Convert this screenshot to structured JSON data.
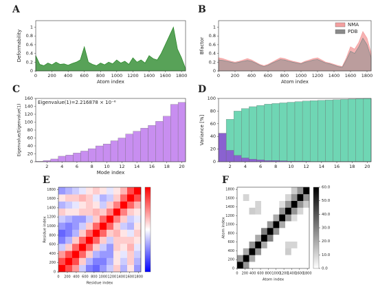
{
  "chart_data": [
    {
      "type": "line",
      "label": "A",
      "xlabel": "Atom index",
      "ylabel": "Deformability",
      "x": [
        0,
        50,
        100,
        150,
        200,
        250,
        300,
        350,
        400,
        450,
        500,
        550,
        600,
        650,
        700,
        750,
        800,
        850,
        900,
        950,
        1000,
        1050,
        1100,
        1150,
        1200,
        1250,
        1300,
        1350,
        1400,
        1450,
        1500,
        1550,
        1600,
        1650,
        1700,
        1750,
        1800,
        1850
      ],
      "series": [
        {
          "color": "#2e8b2e",
          "values": [
            0.35,
            0.15,
            0.12,
            0.18,
            0.14,
            0.2,
            0.15,
            0.16,
            0.13,
            0.17,
            0.2,
            0.25,
            0.55,
            0.2,
            0.15,
            0.12,
            0.18,
            0.14,
            0.2,
            0.16,
            0.25,
            0.18,
            0.22,
            0.15,
            0.3,
            0.2,
            0.25,
            0.18,
            0.35,
            0.28,
            0.25,
            0.4,
            0.6,
            0.8,
            1.0,
            0.5,
            0.3,
            0.05
          ]
        }
      ],
      "xlim": [
        0,
        1850
      ],
      "ylim": [
        0,
        1.15
      ],
      "xticks": [
        0,
        200,
        400,
        600,
        800,
        1000,
        1200,
        1400,
        1600,
        1800
      ],
      "yticks": [
        0,
        0.2,
        0.4,
        0.6,
        0.8,
        1
      ]
    },
    {
      "type": "line",
      "label": "B",
      "xlabel": "Atom index",
      "ylabel": "Bfactor",
      "x": [
        0,
        50,
        100,
        150,
        200,
        250,
        300,
        350,
        400,
        450,
        500,
        550,
        600,
        650,
        700,
        750,
        800,
        850,
        900,
        950,
        1000,
        1050,
        1100,
        1150,
        1200,
        1250,
        1300,
        1350,
        1400,
        1450,
        1500,
        1550,
        1600,
        1650,
        1700,
        1750,
        1800,
        1850
      ],
      "series": [
        {
          "name": "NMA",
          "color": "#f4a0a0",
          "values": [
            0.3,
            0.28,
            0.25,
            0.22,
            0.2,
            0.22,
            0.25,
            0.28,
            0.25,
            0.2,
            0.15,
            0.12,
            0.15,
            0.2,
            0.25,
            0.3,
            0.28,
            0.25,
            0.22,
            0.2,
            0.18,
            0.22,
            0.25,
            0.28,
            0.3,
            0.25,
            0.2,
            0.18,
            0.15,
            0.12,
            0.1,
            0.3,
            0.55,
            0.5,
            0.65,
            0.9,
            0.75,
            0.4
          ]
        },
        {
          "name": "PDB",
          "color": "#8a8a8a",
          "values": [
            0.25,
            0.24,
            0.22,
            0.2,
            0.18,
            0.2,
            0.22,
            0.24,
            0.22,
            0.18,
            0.13,
            0.1,
            0.13,
            0.18,
            0.22,
            0.26,
            0.25,
            0.22,
            0.2,
            0.18,
            0.16,
            0.2,
            0.22,
            0.25,
            0.26,
            0.22,
            0.18,
            0.16,
            0.13,
            0.1,
            0.08,
            0.25,
            0.45,
            0.4,
            0.55,
            0.75,
            0.6,
            0.3
          ]
        }
      ],
      "legend": "upper right",
      "xlim": [
        0,
        1850
      ],
      "ylim": [
        0,
        1.15
      ],
      "xticks": [
        0,
        200,
        400,
        600,
        800,
        1000,
        1200,
        1400,
        1600,
        1800
      ],
      "yticks": [
        0,
        0.2,
        0.4,
        0.6,
        0.8,
        1
      ]
    },
    {
      "type": "bar",
      "label": "C",
      "xlabel": "Mode index",
      "ylabel": "Eigenvalue/Eigenvalue(1)",
      "annotation": "Eigenvalue(1)=2.216878 × 10⁻⁶",
      "x": [
        1,
        2,
        3,
        4,
        5,
        6,
        7,
        8,
        9,
        10,
        11,
        12,
        13,
        14,
        15,
        16,
        17,
        18,
        19,
        20
      ],
      "series": [
        {
          "color": "#c88ef0",
          "values": [
            1,
            3,
            7,
            14,
            17,
            22,
            27,
            33,
            40,
            45,
            53,
            60,
            70,
            77,
            85,
            92,
            102,
            115,
            145,
            150
          ]
        }
      ],
      "xlim": [
        0.5,
        20.5
      ],
      "ylim": [
        0,
        160
      ],
      "xticks": [
        2,
        4,
        6,
        8,
        10,
        12,
        14,
        16,
        18,
        20
      ],
      "yticks": [
        0,
        20,
        40,
        60,
        80,
        100,
        120,
        140,
        160
      ]
    },
    {
      "type": "bar",
      "label": "D",
      "ylabel": "Variance [%]",
      "x": [
        1,
        2,
        3,
        4,
        5,
        6,
        7,
        8,
        9,
        10,
        11,
        12,
        13,
        14,
        15,
        16,
        17,
        18,
        19,
        20
      ],
      "series": [
        {
          "color": "#6fd6b4",
          "values": [
            45,
            67,
            80,
            84,
            87,
            89,
            91,
            92,
            93,
            94,
            95,
            96,
            96.5,
            97,
            97.5,
            98,
            98.5,
            99,
            99.5,
            100
          ]
        },
        {
          "color": "#8a62d0",
          "values": [
            45,
            18,
            10,
            6,
            4,
            3,
            2,
            2,
            1.5,
            1,
            1,
            1,
            0.5,
            0.5,
            0.5,
            0.5,
            0.5,
            0.5,
            0.5,
            0.5
          ]
        }
      ],
      "xlim": [
        0.5,
        20.5
      ],
      "ylim": [
        0,
        100
      ],
      "xticks": [
        2,
        4,
        6,
        8,
        10,
        12,
        14,
        16,
        18,
        20
      ],
      "yticks": [
        0,
        20,
        40,
        60,
        80,
        100
      ]
    },
    {
      "type": "heatmap",
      "label": "E",
      "xlabel": "Residue index",
      "ylabel": "Residue index",
      "colors": [
        "#0000ff",
        "#ffffff",
        "#ff0000"
      ],
      "zlim": [
        -1,
        1
      ],
      "matrix": [
        [
          1,
          0.7,
          0.4,
          -0.2,
          -0.5,
          -0.6,
          -0.4,
          -0.2,
          0.2,
          -0.3,
          0.1,
          -0.4
        ],
        [
          0.7,
          1,
          0.7,
          0.2,
          -0.3,
          -0.5,
          -0.5,
          -0.3,
          0.1,
          -0.2,
          0.2,
          -0.3
        ],
        [
          0.4,
          0.7,
          1,
          0.6,
          0.2,
          -0.3,
          -0.4,
          -0.4,
          0.1,
          -0.1,
          0.2,
          -0.2
        ],
        [
          -0.2,
          0.2,
          0.6,
          1,
          0.6,
          0.2,
          -0.2,
          -0.4,
          0.2,
          0.1,
          0.3,
          -0.1
        ],
        [
          -0.5,
          -0.3,
          0.2,
          0.6,
          1,
          0.6,
          0.2,
          -0.2,
          0.2,
          0.2,
          0.2,
          0.1
        ],
        [
          -0.6,
          -0.5,
          -0.3,
          0.2,
          0.6,
          1,
          0.6,
          0.2,
          0.3,
          0.1,
          -0.1,
          0.2
        ],
        [
          -0.4,
          -0.5,
          -0.4,
          -0.2,
          0.2,
          0.6,
          1,
          0.6,
          0.2,
          -0.2,
          -0.3,
          0.1
        ],
        [
          -0.2,
          -0.3,
          -0.4,
          -0.4,
          -0.2,
          0.2,
          0.6,
          1,
          0.5,
          0.2,
          -0.2,
          -0.1
        ],
        [
          0.2,
          0.1,
          0.1,
          0.2,
          0.2,
          0.3,
          0.2,
          0.5,
          1,
          0.5,
          0.2,
          0.1
        ],
        [
          -0.3,
          -0.2,
          -0.1,
          0.1,
          0.2,
          0.1,
          -0.2,
          0.2,
          0.5,
          1,
          0.6,
          0.3
        ],
        [
          0.1,
          0.2,
          0.2,
          0.3,
          0.2,
          -0.1,
          -0.3,
          -0.2,
          0.2,
          0.6,
          1,
          0.7
        ],
        [
          -0.4,
          -0.3,
          -0.2,
          -0.1,
          0.1,
          0.2,
          0.1,
          -0.1,
          0.1,
          0.3,
          0.7,
          1
        ]
      ],
      "xlim": [
        0,
        1850
      ],
      "ylim": [
        0,
        1850
      ],
      "xticks": [
        0,
        200,
        400,
        600,
        800,
        1000,
        1200,
        1400,
        1600,
        1800
      ],
      "yticks": [
        0,
        200,
        400,
        600,
        800,
        1000,
        1200,
        1400,
        1600,
        1800
      ]
    },
    {
      "type": "heatmap",
      "label": "F",
      "xlabel": "Atom index",
      "ylabel": "Atom index",
      "colors": [
        "#ffffff",
        "#000000"
      ],
      "zlim": [
        0,
        60
      ],
      "zticks": [
        {
          "value": 0,
          "label": "0.0"
        },
        {
          "value": 10,
          "label": "10.0"
        },
        {
          "value": 20,
          "label": "20.0"
        },
        {
          "value": 30,
          "label": "30.0"
        },
        {
          "value": 40,
          "label": "40.0"
        },
        {
          "value": 50,
          "label": "50.0"
        },
        {
          "value": 60,
          "label": "60.0"
        }
      ],
      "matrix": [
        [
          60,
          25,
          0,
          0,
          0,
          0,
          0,
          0,
          0,
          0,
          0,
          0
        ],
        [
          25,
          60,
          20,
          0,
          0,
          0,
          0,
          0,
          0,
          0,
          0,
          0
        ],
        [
          0,
          20,
          60,
          25,
          0,
          0,
          0,
          0,
          12,
          0,
          0,
          0
        ],
        [
          0,
          0,
          25,
          60,
          20,
          0,
          0,
          0,
          10,
          10,
          0,
          0
        ],
        [
          0,
          0,
          0,
          20,
          60,
          30,
          0,
          0,
          0,
          0,
          0,
          0
        ],
        [
          0,
          0,
          0,
          0,
          30,
          60,
          25,
          0,
          0,
          0,
          0,
          0
        ],
        [
          0,
          0,
          0,
          0,
          0,
          25,
          60,
          20,
          0,
          0,
          0,
          0
        ],
        [
          0,
          0,
          0,
          0,
          0,
          0,
          20,
          60,
          25,
          8,
          0,
          0
        ],
        [
          0,
          0,
          12,
          10,
          0,
          0,
          0,
          25,
          60,
          25,
          10,
          0
        ],
        [
          0,
          0,
          0,
          10,
          0,
          0,
          0,
          8,
          25,
          60,
          25,
          12
        ],
        [
          0,
          10,
          0,
          0,
          0,
          0,
          0,
          0,
          10,
          25,
          60,
          25
        ],
        [
          0,
          0,
          0,
          0,
          0,
          0,
          0,
          0,
          0,
          12,
          25,
          60
        ]
      ],
      "xlim": [
        0,
        1850
      ],
      "ylim": [
        0,
        1850
      ],
      "xticks": [
        0,
        200,
        400,
        600,
        800,
        1000,
        1200,
        1400,
        1600,
        1800
      ],
      "yticks": [
        0,
        200,
        400,
        600,
        800,
        1000,
        1200,
        1400,
        1600,
        1800
      ]
    }
  ]
}
